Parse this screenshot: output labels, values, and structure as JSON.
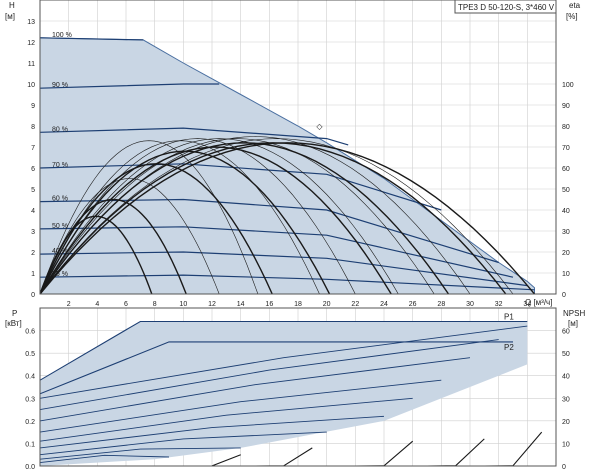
{
  "chart_data": [
    {
      "type": "line",
      "title": "TPE3 D 50-120-S, 3*460 V",
      "y_left_label": "H",
      "y_left_unit": "[м]",
      "y_right_label": "eta",
      "y_right_unit": "[%]",
      "x_label": "Q [м³/ч]",
      "xlim": [
        0,
        36
      ],
      "ylim_left": [
        0,
        14
      ],
      "ylim_right": [
        0,
        140
      ],
      "x_ticks": [
        2,
        4,
        6,
        8,
        10,
        12,
        14,
        16,
        18,
        20,
        22,
        24,
        26,
        28,
        30,
        32,
        34
      ],
      "y_left_ticks": [
        0,
        1,
        2,
        3,
        4,
        5,
        6,
        7,
        8,
        9,
        10,
        11,
        12,
        13
      ],
      "y_right_ticks": [
        0,
        10,
        20,
        30,
        40,
        50,
        60,
        70,
        80,
        90,
        100
      ],
      "grid": true,
      "region_color": "#c9d6e4",
      "curve_color": "#1d3f73",
      "speed_labels": [
        "100 %",
        "90 %",
        "80 %",
        "70 %",
        "60 %",
        "50 %",
        "40 %",
        "25 %"
      ],
      "series": [
        {
          "speed": 100,
          "x": [
            0,
            7.2
          ],
          "values": [
            12.2,
            12.1
          ]
        },
        {
          "speed": 90,
          "x": [
            0,
            10,
            12.5
          ],
          "values": [
            9.8,
            10.0,
            10.0
          ]
        },
        {
          "speed": 80,
          "x": [
            0,
            10,
            20,
            21.5
          ],
          "values": [
            7.7,
            7.9,
            7.4,
            7.1
          ]
        },
        {
          "speed": 70,
          "x": [
            0,
            10,
            20,
            28
          ],
          "values": [
            6.0,
            6.2,
            5.7,
            4.0
          ]
        },
        {
          "speed": 60,
          "x": [
            0,
            10,
            20,
            32
          ],
          "values": [
            4.4,
            4.5,
            4.0,
            1.5
          ]
        },
        {
          "speed": 50,
          "x": [
            0,
            10,
            20,
            33
          ],
          "values": [
            3.1,
            3.2,
            2.8,
            0.8
          ]
        },
        {
          "speed": 40,
          "x": [
            0,
            10,
            20,
            34
          ],
          "values": [
            1.9,
            2.0,
            1.7,
            0.4
          ]
        },
        {
          "speed": 25,
          "x": [
            0,
            10,
            20,
            34.5
          ],
          "values": [
            0.8,
            0.9,
            0.7,
            0.2
          ]
        }
      ],
      "envelope": {
        "x": [
          0,
          7.2,
          10,
          14,
          18,
          20,
          24,
          28,
          32,
          34,
          34.5
        ],
        "values": [
          12.2,
          12.1,
          11.0,
          9.5,
          8.0,
          7.2,
          5.5,
          3.5,
          1.5,
          0.6,
          0.3
        ]
      },
      "marker": {
        "x": 19.5,
        "y": 8.0,
        "symbol": "◇",
        "color": "#e04040"
      }
    },
    {
      "type": "line",
      "y_left_label": "P",
      "y_left_unit": "[кВт]",
      "y_right_label": "NPSH",
      "y_right_unit": "[м]",
      "xlim": [
        0,
        36
      ],
      "ylim_left": [
        0,
        0.7
      ],
      "ylim_right": [
        0,
        70
      ],
      "y_left_ticks": [
        0,
        0.1,
        0.2,
        0.3,
        0.4,
        0.5,
        0.6
      ],
      "y_left_tick_labels": [
        "0.0",
        "0.1",
        "0.2",
        "0.3",
        "0.4",
        "0.5",
        "0.6"
      ],
      "y_right_ticks": [
        0,
        10,
        20,
        30,
        40,
        50,
        60
      ],
      "grid": true,
      "series": [
        {
          "name": "P1",
          "x": [
            0,
            7,
            20,
            34
          ],
          "values": [
            0.38,
            0.64,
            0.64,
            0.64
          ]
        },
        {
          "name": "P2",
          "x": [
            0,
            9,
            20,
            33
          ],
          "values": [
            0.32,
            0.55,
            0.55,
            0.55
          ]
        }
      ]
    }
  ]
}
